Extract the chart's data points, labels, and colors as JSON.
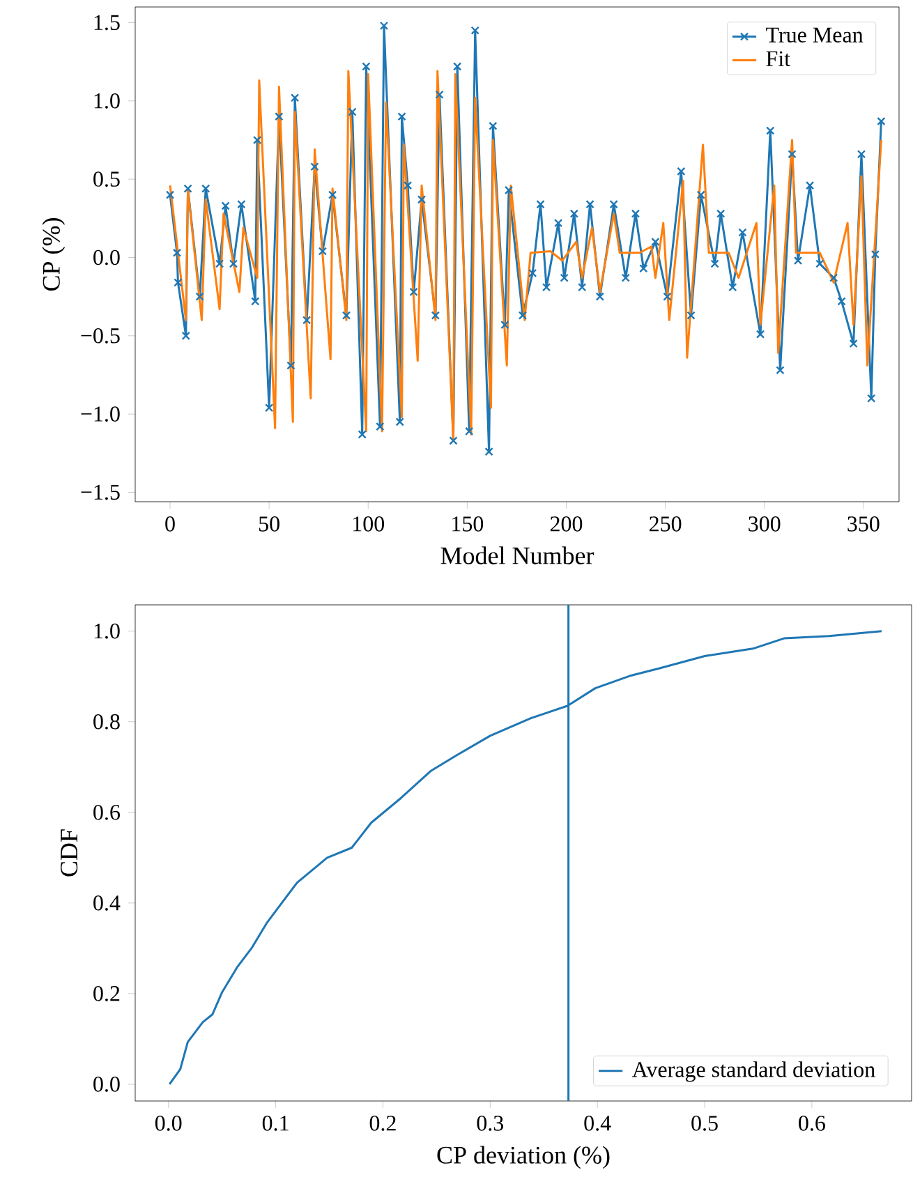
{
  "chart_data": [
    {
      "type": "line",
      "xlabel": "Model Number",
      "ylabel": "CP (%)",
      "xlim": [
        -17.6,
        368
      ],
      "ylim": [
        -1.56,
        1.6
      ],
      "xticks": [
        0,
        50,
        100,
        150,
        200,
        250,
        300,
        350
      ],
      "yticks": [
        {
          "value": -1.5,
          "label": "−1.5"
        },
        {
          "value": -1.0,
          "label": "−1.0"
        },
        {
          "value": -0.5,
          "label": "−0.5"
        },
        {
          "value": 0.0,
          "label": "0.0"
        },
        {
          "value": 0.5,
          "label": "0.5"
        },
        {
          "value": 1.0,
          "label": "1.0"
        },
        {
          "value": 1.5,
          "label": "1.5"
        }
      ],
      "legend": "top right",
      "grid": false,
      "series": [
        {
          "name": "True Mean",
          "color": "#1f77b4",
          "marker": "cross",
          "x": [
            0,
            3.5,
            4,
            8,
            9,
            15,
            18,
            25,
            28,
            32,
            36,
            43,
            44,
            50,
            55,
            61,
            63,
            69,
            73,
            77,
            82,
            89,
            92,
            97,
            99,
            106,
            108,
            116,
            117,
            120,
            123,
            127,
            134,
            136,
            143,
            145,
            151,
            154,
            161,
            163,
            169,
            171,
            178,
            183,
            187,
            190,
            196,
            199,
            204,
            208,
            212,
            217,
            224,
            230,
            235,
            239,
            245,
            251,
            258,
            263,
            268,
            275,
            278,
            284,
            289,
            298,
            303,
            308,
            314,
            317,
            323,
            328,
            335,
            339,
            345,
            349,
            354,
            356,
            359
          ],
          "values": [
            0.4,
            0.03,
            -0.16,
            -0.5,
            0.44,
            -0.25,
            0.44,
            -0.04,
            0.33,
            -0.04,
            0.34,
            -0.28,
            0.75,
            -0.96,
            0.9,
            -0.69,
            1.02,
            -0.4,
            0.58,
            0.04,
            0.4,
            -0.37,
            0.93,
            -1.13,
            1.22,
            -1.08,
            1.48,
            -1.05,
            0.9,
            0.46,
            -0.22,
            0.37,
            -0.37,
            1.04,
            -1.17,
            1.22,
            -1.11,
            1.45,
            -1.24,
            0.84,
            -0.43,
            0.43,
            -0.37,
            -0.1,
            0.34,
            -0.19,
            0.22,
            -0.13,
            0.28,
            -0.19,
            0.34,
            -0.25,
            0.34,
            -0.13,
            0.28,
            -0.07,
            0.1,
            -0.25,
            0.55,
            -0.37,
            0.4,
            -0.04,
            0.28,
            -0.19,
            0.16,
            -0.49,
            0.81,
            -0.72,
            0.66,
            -0.02,
            0.46,
            -0.04,
            -0.13,
            -0.28,
            -0.55,
            0.66,
            -0.9,
            0.02,
            0.87
          ]
        },
        {
          "name": "Fit",
          "color": "#ff7f0e",
          "x": [
            0,
            8,
            9,
            16,
            18,
            25,
            27,
            35,
            37,
            44,
            45,
            53,
            55,
            62,
            63,
            71,
            73,
            81,
            82,
            89,
            90,
            99,
            100,
            107,
            109,
            117,
            118,
            125,
            127,
            134,
            135,
            143,
            144,
            152,
            154,
            162,
            163,
            170,
            172,
            179,
            182,
            192,
            198,
            205,
            208,
            213,
            217,
            224,
            227,
            237,
            243,
            245,
            249,
            252,
            259,
            261,
            269,
            272,
            282,
            287,
            296,
            298,
            305,
            307,
            314,
            316,
            328,
            335,
            342,
            345,
            349,
            352,
            359
          ],
          "values": [
            0.46,
            -0.4,
            0.43,
            -0.4,
            0.37,
            -0.33,
            0.28,
            -0.22,
            0.19,
            -0.13,
            1.13,
            -1.09,
            1.09,
            -1.05,
            0.93,
            -0.9,
            0.69,
            -0.65,
            0.44,
            -0.4,
            1.19,
            -1.11,
            1.17,
            -1.11,
            0.99,
            -1.02,
            0.72,
            -0.66,
            0.46,
            -0.4,
            1.19,
            -1.17,
            1.17,
            -1.13,
            1.02,
            -0.96,
            0.75,
            -0.69,
            0.46,
            -0.4,
            0.03,
            0.04,
            -0.02,
            0.1,
            -0.13,
            0.19,
            -0.22,
            0.28,
            0.03,
            0.03,
            0.07,
            -0.13,
            0.22,
            -0.4,
            0.49,
            -0.64,
            0.72,
            0.03,
            0.03,
            -0.13,
            0.22,
            -0.43,
            0.46,
            -0.61,
            0.75,
            0.03,
            0.03,
            -0.16,
            0.22,
            -0.43,
            0.52,
            -0.69,
            0.75
          ]
        }
      ]
    },
    {
      "type": "line",
      "xlabel": "CP deviation (%)",
      "ylabel": "CDF",
      "xlim": [
        -0.031,
        0.693
      ],
      "ylim": [
        -0.037,
        1.058
      ],
      "xticks": [
        {
          "value": 0.0,
          "label": "0.0"
        },
        0.1,
        0.2,
        0.3,
        0.4,
        0.5,
        0.6
      ],
      "yticks": [
        {
          "value": 0.0,
          "label": "0.0"
        },
        0.2,
        0.4,
        0.6,
        0.8,
        {
          "value": 1.0,
          "label": "1.0"
        }
      ],
      "legend": "bottom right",
      "grid": false,
      "series": [
        {
          "color": "#1f77b4",
          "x": [
            0.001,
            0.011,
            0.018,
            0.032,
            0.041,
            0.05,
            0.064,
            0.078,
            0.092,
            0.106,
            0.12,
            0.148,
            0.171,
            0.189,
            0.217,
            0.245,
            0.268,
            0.3,
            0.338,
            0.372,
            0.398,
            0.43,
            0.458,
            0.5,
            0.546,
            0.574,
            0.616,
            0.665
          ],
          "values": [
            0.0,
            0.033,
            0.093,
            0.137,
            0.154,
            0.203,
            0.258,
            0.302,
            0.357,
            0.401,
            0.445,
            0.5,
            0.522,
            0.577,
            0.632,
            0.692,
            0.725,
            0.769,
            0.808,
            0.835,
            0.874,
            0.901,
            0.918,
            0.945,
            0.962,
            0.984,
            0.989,
            1.0
          ]
        }
      ],
      "ref_lines": [
        {
          "axis": "x",
          "value": 0.373,
          "label": "Average standard deviation",
          "color": "#1f77b4"
        }
      ]
    }
  ]
}
